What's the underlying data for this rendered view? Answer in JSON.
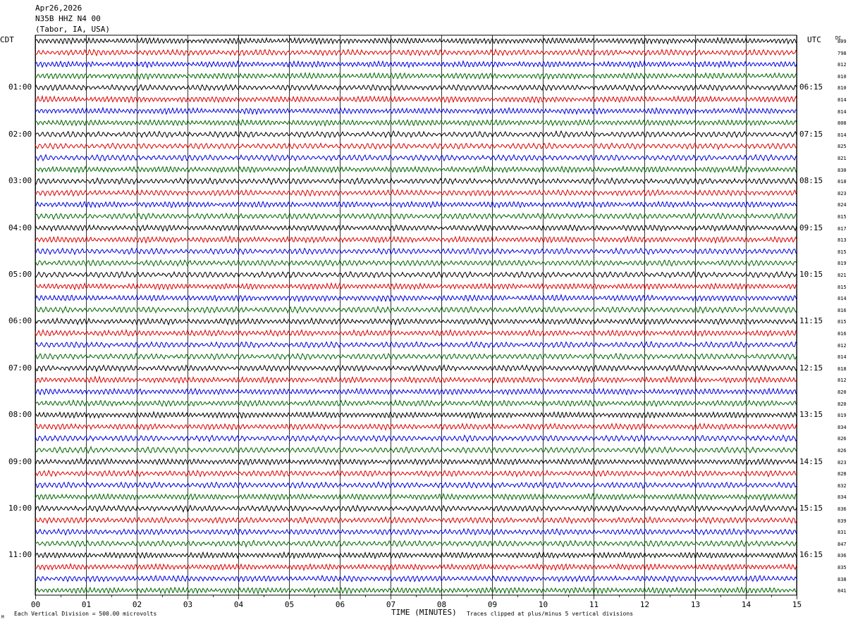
{
  "header": {
    "date": "Apr26,2026",
    "station": "N35B HHZ N4 00",
    "location": "(Tabor, IA, USA)"
  },
  "left_axis_title": "CDT",
  "right_axis_title": "UTC",
  "dc_title": "DC",
  "footer": {
    "xlabel": "TIME (MINUTES)",
    "scale_note": "Each Vertical Division =  500.00 microvolts",
    "clip_note": "Traces clipped at plus/minus 5 vertical divisions",
    "corner_mark": "M"
  },
  "colors": {
    "trace_cycle": [
      "#000000",
      "#dd0000",
      "#0000dd",
      "#006600"
    ],
    "grid": "#000000"
  },
  "chart_data": {
    "type": "line",
    "title": "",
    "xlabel": "TIME (MINUTES)",
    "xlim": [
      0,
      15
    ],
    "x_ticks": [
      "00",
      "01",
      "02",
      "03",
      "04",
      "05",
      "06",
      "07",
      "08",
      "09",
      "10",
      "11",
      "12",
      "13",
      "14",
      "15"
    ],
    "trace_count": 48,
    "left_time_labels": [
      "01:00",
      "02:00",
      "03:00",
      "04:00",
      "05:00",
      "06:00",
      "07:00",
      "08:00",
      "09:00",
      "10:00",
      "11:00"
    ],
    "right_time_labels": [
      "06:15",
      "07:15",
      "08:15",
      "09:15",
      "10:15",
      "11:15",
      "12:15",
      "13:15",
      "14:15",
      "15:15",
      "16:15"
    ],
    "dc_offsets": [
      809,
      798,
      812,
      810,
      810,
      814,
      814,
      808,
      814,
      825,
      821,
      830,
      818,
      823,
      824,
      815,
      817,
      813,
      815,
      819,
      821,
      815,
      814,
      816,
      815,
      816,
      812,
      814,
      818,
      812,
      820,
      820,
      819,
      834,
      826,
      826,
      823,
      828,
      832,
      834,
      836,
      839,
      831,
      847,
      836,
      835,
      838,
      841
    ]
  }
}
